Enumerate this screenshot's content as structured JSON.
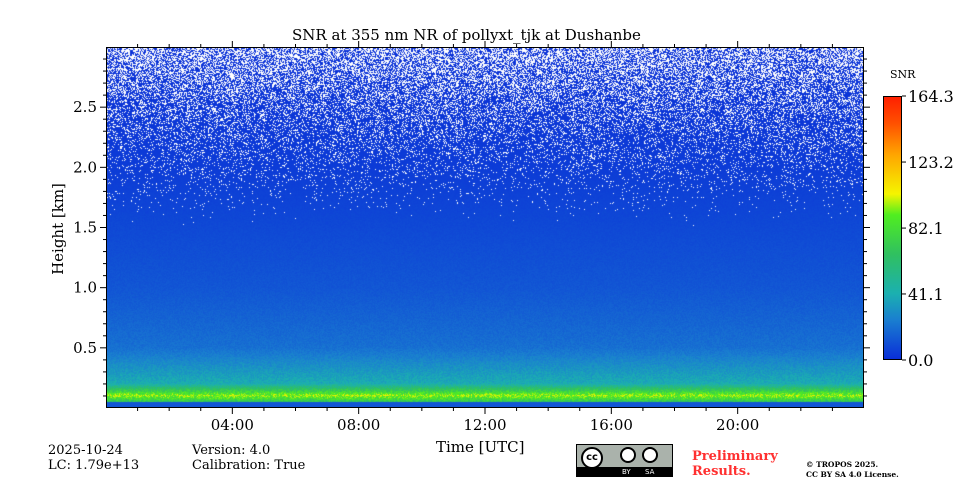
{
  "chart_data": {
    "type": "heatmap",
    "title": "SNR at 355 nm NR of pollyxt_tjk at Dushanbe",
    "xlabel": "Time [UTC]",
    "ylabel": "Height [km]",
    "x_range_hours": [
      0,
      24
    ],
    "ylim": [
      0,
      3.0
    ],
    "x_ticks": [
      "04:00",
      "08:00",
      "12:00",
      "16:00",
      "20:00"
    ],
    "x_tick_values": [
      4,
      8,
      12,
      16,
      20
    ],
    "y_ticks": [
      "0.5",
      "1.0",
      "1.5",
      "2.0",
      "2.5"
    ],
    "y_tick_values": [
      0.5,
      1.0,
      1.5,
      2.0,
      2.5
    ],
    "colorbar": {
      "label": "SNR",
      "min": 0.0,
      "max": 164.3,
      "ticks": [
        "0.0",
        "41.1",
        "82.1",
        "123.2",
        "164.3"
      ],
      "tick_values": [
        0,
        41.1,
        82.1,
        123.2,
        164.3
      ]
    },
    "description_profile": {
      "heights_km": [
        0.05,
        0.1,
        0.2,
        0.5,
        1.0,
        1.5,
        2.0,
        2.5,
        3.0
      ],
      "typical_snr": [
        70,
        95,
        40,
        20,
        12,
        8,
        4,
        2,
        1
      ]
    },
    "colors": {
      "low": "#0a2fd8",
      "mid": "#50ee20",
      "high": "#ff2000",
      "noise": "#ffffff"
    }
  },
  "footer": {
    "date": "2025-10-24",
    "lc": "LC: 1.79e+13",
    "version": "Version: 4.0",
    "calibration": "Calibration: True",
    "preliminary": "Preliminary\nResults.",
    "copyright": "© TROPOS 2025.",
    "license": "CC BY SA 4.0 License.",
    "cc_logo": {
      "cc": "cc",
      "by": "BY",
      "sa": "SA"
    }
  }
}
